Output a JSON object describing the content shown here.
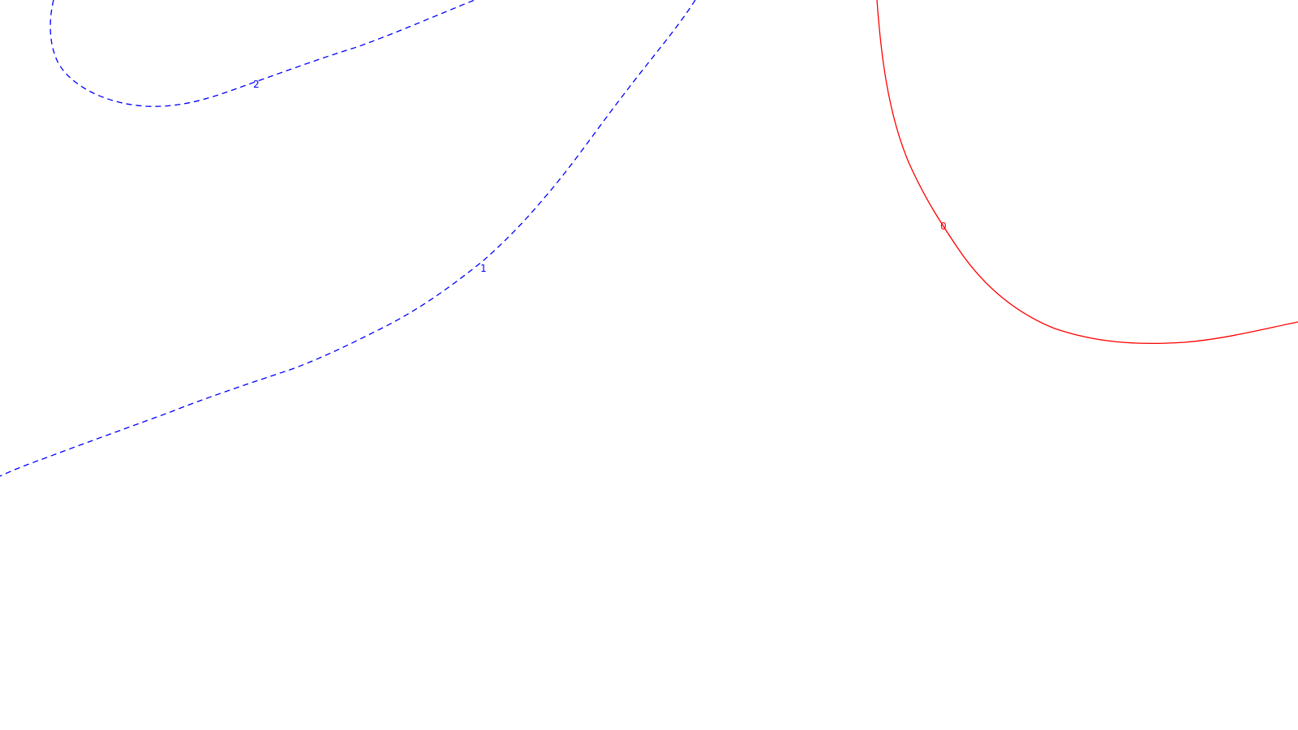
{
  "chart_data": {
    "type": "contour",
    "title": "",
    "xlabel": "",
    "ylabel": "",
    "grid": false,
    "legend": "none",
    "levels": [
      {
        "value": 2,
        "label": "2",
        "color": "#0000ff",
        "style": "dashed"
      },
      {
        "value": 1,
        "label": "1",
        "color": "#0000ff",
        "style": "dashed"
      },
      {
        "value": 0,
        "label": "0",
        "color": "#ff0000",
        "style": "solid"
      }
    ]
  }
}
